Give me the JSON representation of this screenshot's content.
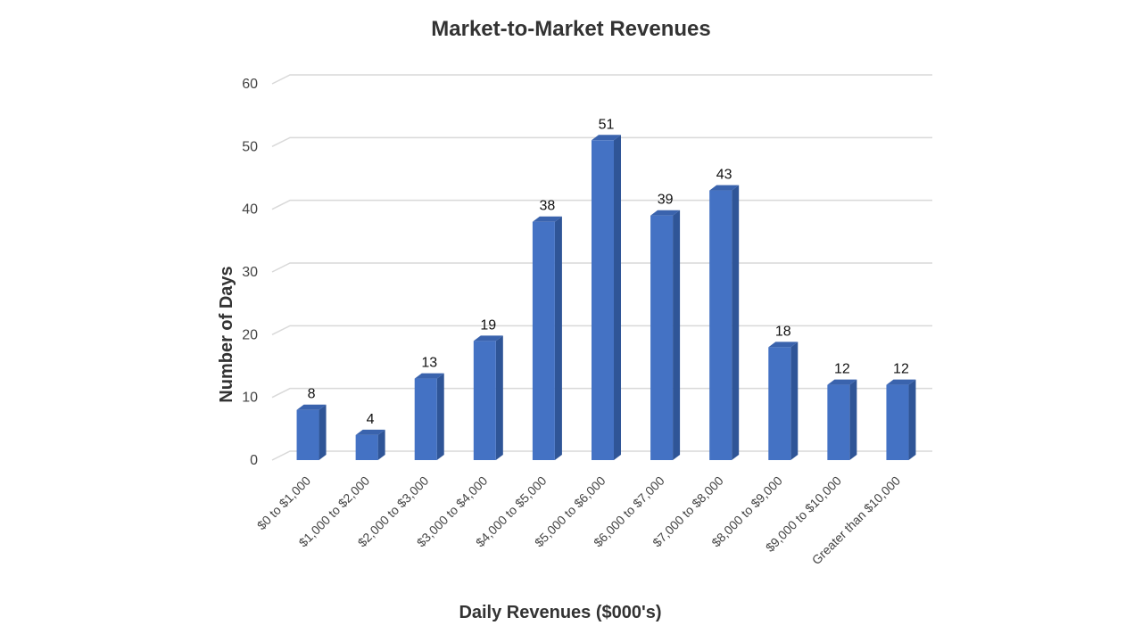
{
  "chart_data": {
    "type": "bar",
    "title": "Market-to-Market Revenues",
    "xlabel": "Daily Revenues ($000's)",
    "ylabel": "Number of Days",
    "categories": [
      "$0 to $1,000",
      "$1,000 to $2,000",
      "$2,000 to $3,000",
      "$3,000 to $4,000",
      "$4,000 to $5,000",
      "$5,000 to $6,000",
      "$6,000 to $7,000",
      "$7,000 to $8,000",
      "$8,000 to $9,000",
      "$9,000 to $10,000",
      "Greater than $10,000"
    ],
    "values": [
      8,
      4,
      13,
      19,
      38,
      51,
      39,
      43,
      18,
      12,
      12
    ],
    "ylim": [
      0,
      60
    ],
    "yticks": [
      0,
      10,
      20,
      30,
      40,
      50,
      60
    ],
    "grid": true,
    "style": "3d-column",
    "colors": {
      "bar_front": "#4472c4",
      "bar_side": "#2f5597",
      "bar_top": "#3a63ad"
    }
  }
}
